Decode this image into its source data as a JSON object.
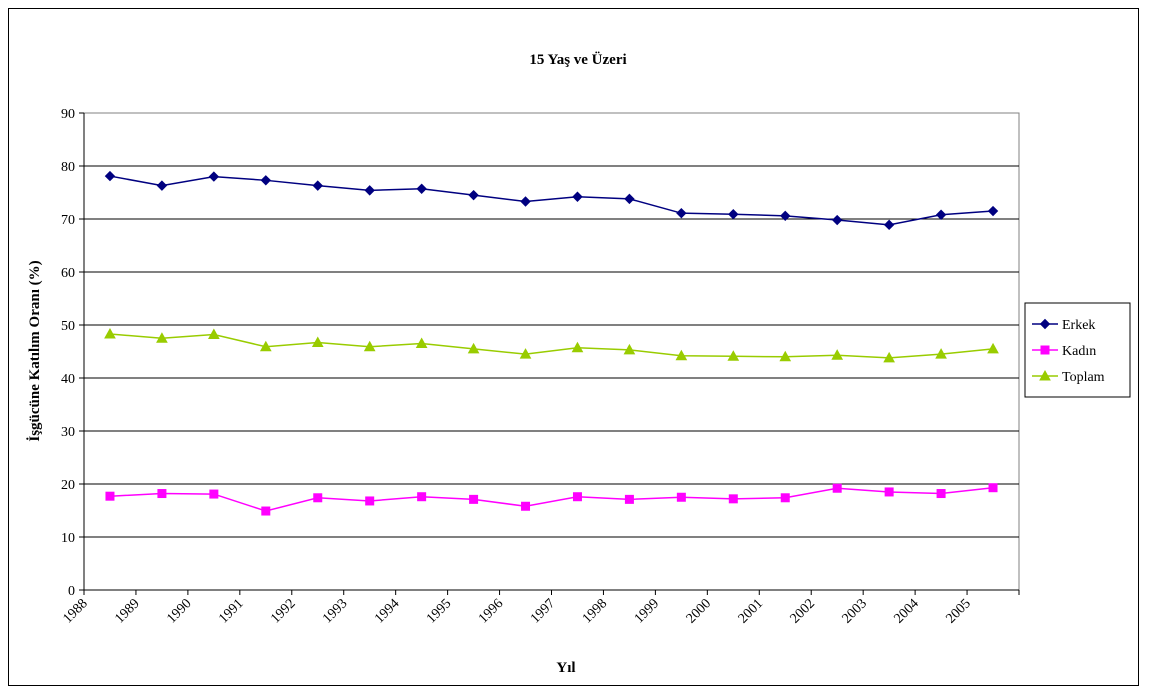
{
  "chart_data": {
    "type": "line",
    "title": "15 Yaş ve Üzeri",
    "xlabel": "Yıl",
    "ylabel": "İşgücüne Katılım Oranı (%)",
    "ylim": [
      0,
      90
    ],
    "yticks": [
      0,
      10,
      20,
      30,
      40,
      50,
      60,
      70,
      80,
      90
    ],
    "grid": "horizontal",
    "legend_position": "right",
    "categories": [
      "1988",
      "1989",
      "1990",
      "1991",
      "1992",
      "1993",
      "1994",
      "1995",
      "1996",
      "1997",
      "1998",
      "1999",
      "2000",
      "2001",
      "2002",
      "2003",
      "2004",
      "2005"
    ],
    "series": [
      {
        "name": "Erkek",
        "color": "#000080",
        "marker": "diamond",
        "values": [
          78.1,
          76.3,
          78.0,
          77.3,
          76.3,
          75.4,
          75.7,
          74.5,
          73.3,
          74.2,
          73.8,
          71.1,
          70.9,
          70.6,
          69.8,
          68.9,
          70.8,
          71.5
        ]
      },
      {
        "name": "Kadın",
        "color": "#FF00FF",
        "marker": "square",
        "values": [
          17.7,
          18.2,
          18.1,
          14.9,
          17.4,
          16.8,
          17.6,
          17.1,
          15.8,
          17.6,
          17.1,
          17.5,
          17.2,
          17.4,
          19.2,
          18.5,
          18.2,
          19.3
        ]
      },
      {
        "name": "Toplam",
        "color": "#99CC00",
        "marker": "triangle",
        "values": [
          48.3,
          47.5,
          48.2,
          45.9,
          46.7,
          45.9,
          46.5,
          45.5,
          44.5,
          45.7,
          45.3,
          44.2,
          44.1,
          44.0,
          44.3,
          43.8,
          44.5,
          45.5
        ]
      }
    ]
  }
}
